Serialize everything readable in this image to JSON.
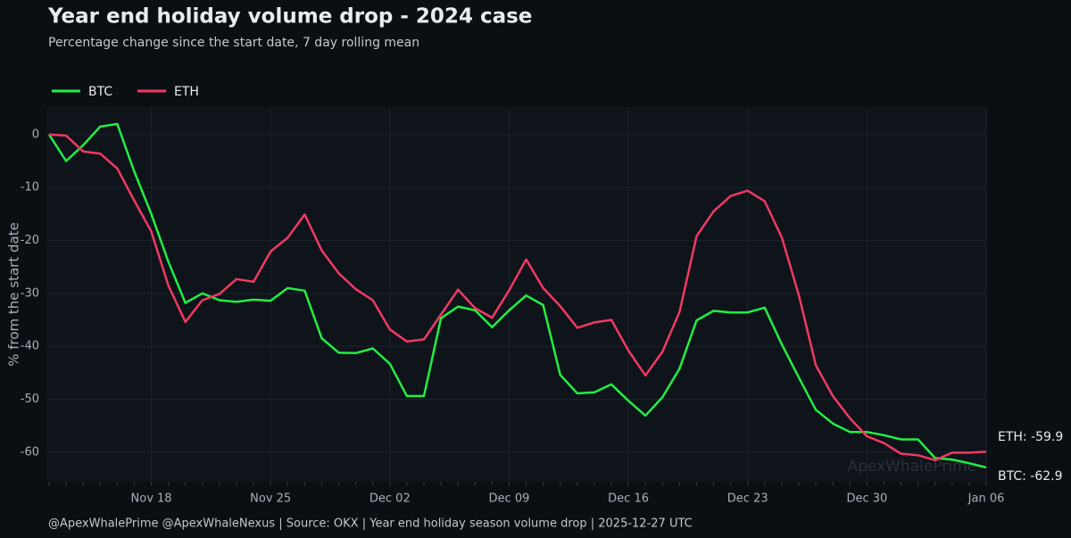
{
  "chart_data": {
    "type": "line",
    "title": "Year end holiday volume drop - 2024 case",
    "subtitle": "Percentage change since the start date, 7 day rolling mean",
    "y_label": "% from the start date",
    "footer": "@ApexWhalePrime @ApexWhaleNexus  |  Source: OKX  |  Year end holiday season volume drop  |  2025-12-27 UTC",
    "watermark": "ApexWhalePrime",
    "categories": [
      null,
      null,
      null,
      null,
      null,
      null,
      "Nov 18",
      null,
      null,
      null,
      null,
      null,
      null,
      "Nov 25",
      null,
      null,
      null,
      null,
      null,
      null,
      "Dec 02",
      null,
      null,
      null,
      null,
      null,
      null,
      "Dec 09",
      null,
      null,
      null,
      null,
      null,
      null,
      "Dec 16",
      null,
      null,
      null,
      null,
      null,
      null,
      "Dec 23",
      null,
      null,
      null,
      null,
      null,
      null,
      "Dec 30",
      null,
      null,
      null,
      null,
      null,
      null,
      "Jan 06"
    ],
    "series": [
      {
        "name": "BTC",
        "color": "#22ee44",
        "end_label": "BTC: -62.9",
        "values": [
          0,
          -5,
          -2,
          1.5,
          2,
          -7,
          -15,
          -24,
          -31.8,
          -30,
          -31.3,
          -31.6,
          -31.2,
          -31.4,
          -29,
          -29.5,
          -38.5,
          -41.2,
          -41.3,
          -40.4,
          -43.3,
          -49.4,
          -49.4,
          -34.7,
          -32.5,
          -33.2,
          -36.4,
          -33.2,
          -30.4,
          -32.2,
          -45.4,
          -48.9,
          -48.7,
          -47.2,
          -50.3,
          -53.1,
          -49.6,
          -44.2,
          -35.1,
          -33.3,
          -33.6,
          -33.6,
          -32.7,
          -39.6,
          -45.9,
          -52,
          -54.6,
          -56.2,
          -56.2,
          -56.8,
          -57.6,
          -57.6,
          -61.1,
          -61.4,
          -62.1,
          -62.9
        ]
      },
      {
        "name": "ETH",
        "color": "#f03a63",
        "end_label": "ETH: -59.9",
        "values": [
          0,
          -0.2,
          -3.2,
          -3.6,
          -6.4,
          -12.5,
          -18.3,
          -28.5,
          -35.4,
          -31.3,
          -30.1,
          -27.3,
          -27.8,
          -22.1,
          -19.5,
          -15.1,
          -21.9,
          -26.2,
          -29.2,
          -31.3,
          -36.8,
          -39.1,
          -38.7,
          -34,
          -29.3,
          -32.8,
          -34.6,
          -29.4,
          -23.6,
          -29,
          -32.4,
          -36.5,
          -35.5,
          -35,
          -40.8,
          -45.5,
          -41,
          -33.5,
          -19.2,
          -14.5,
          -11.6,
          -10.6,
          -12.6,
          -19.4,
          -30.3,
          -43.6,
          -49.4,
          -53.6,
          -57,
          -58.3,
          -60.3,
          -60.6,
          -61.5,
          -60.1,
          -60.1,
          -59.9
        ]
      }
    ],
    "ylim": [
      -65.6,
      5.2
    ],
    "yticks": [
      -60,
      -50,
      -40,
      -30,
      -20,
      -10,
      0
    ],
    "grid": true,
    "legend": "top-left"
  }
}
